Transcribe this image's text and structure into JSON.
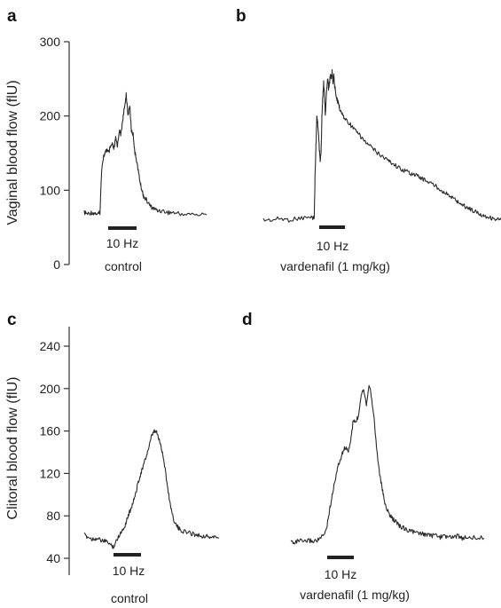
{
  "chart_data": [
    {
      "panel": "a",
      "type": "line",
      "ylabel": "Vaginal blood flow (flU)",
      "ylim": [
        0,
        300
      ],
      "yticks": [
        0,
        100,
        200,
        300
      ],
      "stimulus_label": "10 Hz",
      "condition_label": "control",
      "series": [
        {
          "x": [
            0,
            2,
            4,
            6,
            8,
            9,
            10,
            11,
            12,
            13,
            14,
            15,
            16,
            17,
            18,
            19,
            20,
            21,
            22,
            23,
            24,
            25,
            26,
            27,
            28,
            29,
            30,
            31,
            32,
            33,
            34,
            36,
            38,
            40,
            42,
            45,
            48,
            51,
            55,
            60,
            65,
            70
          ],
          "values": [
            70,
            68,
            70,
            69,
            68,
            70,
            130,
            145,
            150,
            155,
            150,
            158,
            162,
            155,
            170,
            160,
            180,
            175,
            195,
            210,
            230,
            200,
            215,
            180,
            175,
            150,
            140,
            125,
            110,
            100,
            92,
            85,
            78,
            75,
            73,
            72,
            70,
            70,
            68,
            68,
            67,
            67
          ]
        }
      ]
    },
    {
      "panel": "b",
      "type": "line",
      "ylim": [
        0,
        300
      ],
      "stimulus_label": "10 Hz",
      "condition_label": "vardenafil (1 mg/kg)",
      "series": [
        {
          "x": [
            0,
            10,
            20,
            30,
            40,
            50,
            58,
            60,
            61,
            62,
            63,
            64,
            65,
            66,
            67,
            68,
            69,
            70,
            71,
            72,
            73,
            74,
            75,
            76,
            77,
            78,
            79,
            80,
            81,
            82,
            83,
            84,
            85,
            86,
            87,
            88,
            89,
            90,
            92,
            95,
            100,
            105,
            110,
            115,
            120,
            125,
            130,
            135,
            140,
            145,
            150,
            155,
            160,
            165,
            170,
            175,
            180,
            185,
            190,
            195,
            200,
            205,
            210,
            215,
            220,
            225,
            230,
            235,
            240,
            245,
            250,
            255,
            260,
            265,
            270,
            275,
            280
          ],
          "values": [
            60,
            60,
            62,
            60,
            62,
            63,
            63,
            64,
            125,
            160,
            200,
            190,
            175,
            155,
            140,
            150,
            200,
            225,
            245,
            230,
            200,
            225,
            240,
            250,
            235,
            245,
            255,
            250,
            260,
            245,
            255,
            240,
            235,
            225,
            222,
            218,
            215,
            210,
            205,
            198,
            192,
            185,
            178,
            172,
            165,
            160,
            155,
            150,
            146,
            142,
            138,
            134,
            130,
            127,
            125,
            122,
            120,
            117,
            114,
            111,
            108,
            104,
            100,
            96,
            92,
            88,
            84,
            80,
            77,
            74,
            71,
            68,
            66,
            64,
            62,
            61,
            60
          ]
        }
      ]
    },
    {
      "panel": "c",
      "type": "line",
      "ylabel": "Clitoral blood flow (flU)",
      "ylim": [
        35,
        275
      ],
      "yticks": [
        40,
        80,
        120,
        160,
        200,
        240
      ],
      "stimulus_label": "10 Hz",
      "condition_label": "control",
      "series": [
        {
          "x": [
            0,
            3,
            6,
            9,
            12,
            15,
            18,
            20,
            22,
            24,
            26,
            28,
            30,
            32,
            34,
            36,
            38,
            40,
            42,
            44,
            46,
            48,
            50,
            52,
            54,
            56,
            58,
            60,
            62,
            64,
            66,
            68,
            70,
            72,
            75,
            78,
            81,
            84,
            87,
            90,
            93,
            96,
            100
          ],
          "values": [
            62,
            60,
            58,
            59,
            57,
            56,
            55,
            52,
            51,
            57,
            62,
            66,
            70,
            78,
            85,
            92,
            100,
            112,
            120,
            128,
            136,
            145,
            155,
            160,
            158,
            150,
            140,
            125,
            105,
            90,
            78,
            72,
            68,
            66,
            65,
            64,
            63,
            62,
            61,
            61,
            60,
            60,
            59
          ]
        }
      ]
    },
    {
      "panel": "d",
      "type": "line",
      "ylim": [
        35,
        275
      ],
      "stimulus_label": "10 Hz",
      "condition_label": "vardenafil (1 mg/kg)",
      "series": [
        {
          "x": [
            0,
            5,
            10,
            15,
            20,
            25,
            30,
            35,
            38,
            41,
            44,
            47,
            50,
            53,
            56,
            59,
            62,
            65,
            68,
            71,
            74,
            77,
            80,
            83,
            86,
            89,
            92,
            95,
            98,
            101,
            104,
            107,
            110,
            113,
            116,
            119,
            122,
            125,
            130,
            135,
            140,
            145,
            150,
            155,
            160,
            165,
            170,
            175,
            180,
            185,
            190,
            195,
            200,
            210,
            220
          ],
          "values": [
            56,
            55,
            57,
            55,
            57,
            56,
            57,
            60,
            62,
            70,
            85,
            100,
            112,
            125,
            132,
            140,
            145,
            140,
            150,
            170,
            168,
            175,
            195,
            200,
            185,
            205,
            190,
            170,
            140,
            120,
            105,
            92,
            85,
            80,
            77,
            75,
            72,
            70,
            68,
            66,
            65,
            63,
            63,
            62,
            61,
            62,
            60,
            61,
            60,
            60,
            61,
            59,
            60,
            60,
            59
          ]
        }
      ]
    }
  ]
}
